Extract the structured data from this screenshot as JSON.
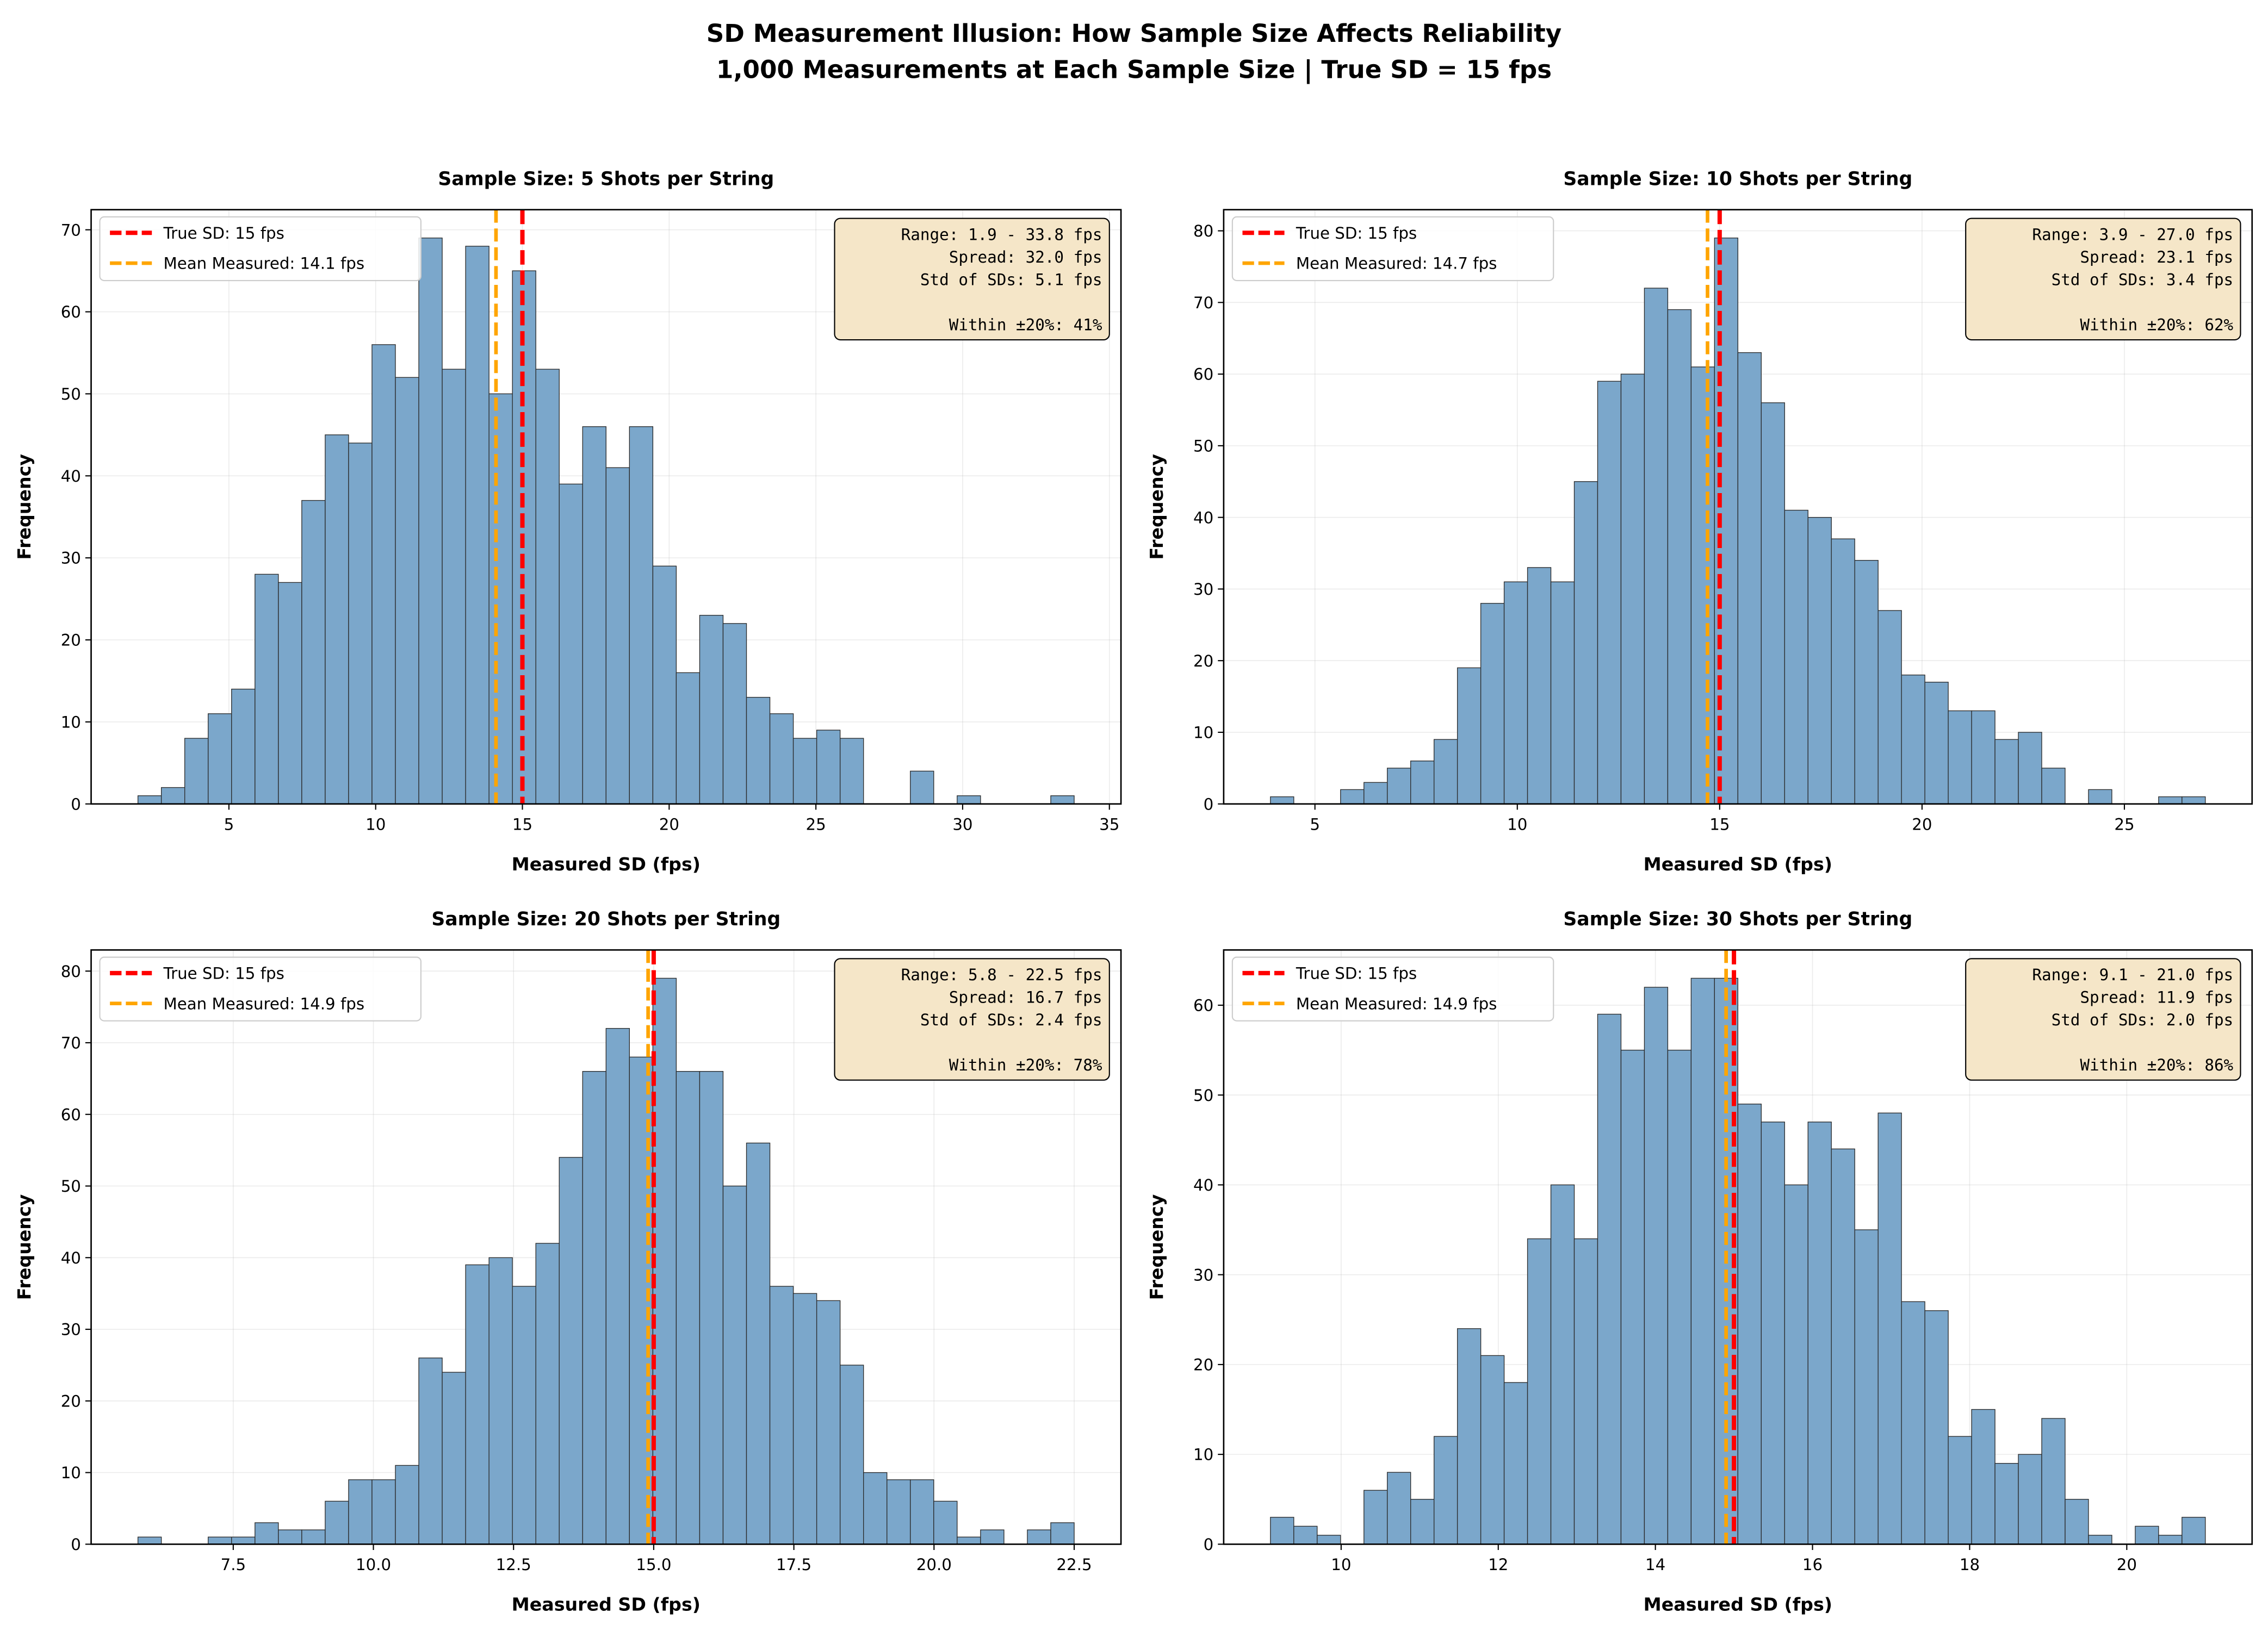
{
  "suptitle": {
    "line1": "SD Measurement Illusion: How Sample Size Affects Reliability",
    "line2": "1,000 Measurements at Each Sample Size | True SD = 15 fps"
  },
  "colors": {
    "bar": "#7BA7CB",
    "bar_edge": "#2b2b2b",
    "true_sd": "#FF0000",
    "mean": "#FFA500",
    "stats_box": "#F5E6C8"
  },
  "chart_data": [
    {
      "type": "bar",
      "title": "Sample Size: 5 Shots per String",
      "xlabel": "Measured SD (fps)",
      "ylabel": "Frequency",
      "bin_range": [
        1.9,
        33.8
      ],
      "bins": 40,
      "values": [
        1,
        2,
        8,
        11,
        14,
        28,
        27,
        37,
        45,
        44,
        56,
        52,
        69,
        53,
        68,
        50,
        65,
        53,
        39,
        46,
        41,
        46,
        29,
        16,
        23,
        22,
        13,
        11,
        8,
        9,
        8,
        0,
        0,
        4,
        0,
        1,
        0,
        0,
        0,
        1
      ],
      "xticks": [
        5,
        10,
        15,
        20,
        25,
        30,
        35
      ],
      "xtick_labels": [
        "5",
        "10",
        "15",
        "20",
        "25",
        "30",
        "35"
      ],
      "yticks": [
        0,
        10,
        20,
        30,
        40,
        50,
        60,
        70
      ],
      "true_sd": 15,
      "mean": 14.1,
      "legend": [
        "True SD: 15 fps",
        "Mean Measured: 14.1 fps"
      ],
      "legend_position": "top-left",
      "stats": [
        "Range: 1.9 - 33.8 fps",
        "Spread: 32.0 fps",
        "Std of SDs: 5.1 fps",
        "",
        "Within ±20%: 41%"
      ],
      "grid": true
    },
    {
      "type": "bar",
      "title": "Sample Size: 10 Shots per String",
      "xlabel": "Measured SD (fps)",
      "ylabel": "Frequency",
      "bin_range": [
        3.9,
        27.0
      ],
      "bins": 40,
      "values": [
        1,
        0,
        0,
        2,
        3,
        5,
        6,
        9,
        19,
        28,
        31,
        33,
        31,
        45,
        59,
        60,
        72,
        69,
        61,
        79,
        63,
        56,
        41,
        40,
        37,
        34,
        27,
        18,
        17,
        13,
        13,
        9,
        10,
        5,
        0,
        2,
        0,
        0,
        1,
        1
      ],
      "xticks": [
        5,
        10,
        15,
        20,
        25
      ],
      "xtick_labels": [
        "5",
        "10",
        "15",
        "20",
        "25"
      ],
      "yticks": [
        0,
        10,
        20,
        30,
        40,
        50,
        60,
        70,
        80
      ],
      "true_sd": 15,
      "mean": 14.7,
      "legend": [
        "True SD: 15 fps",
        "Mean Measured: 14.7 fps"
      ],
      "legend_position": "top-left",
      "stats": [
        "Range: 3.9 - 27.0 fps",
        "Spread: 23.1 fps",
        "Std of SDs: 3.4 fps",
        "",
        "Within ±20%: 62%"
      ],
      "grid": true
    },
    {
      "type": "bar",
      "title": "Sample Size: 20 Shots per String",
      "xlabel": "Measured SD (fps)",
      "ylabel": "Frequency",
      "bin_range": [
        5.8,
        22.5
      ],
      "bins": 40,
      "values": [
        1,
        0,
        0,
        1,
        1,
        3,
        2,
        2,
        6,
        9,
        9,
        11,
        26,
        24,
        39,
        40,
        36,
        42,
        54,
        66,
        72,
        68,
        79,
        66,
        66,
        50,
        56,
        36,
        35,
        34,
        25,
        10,
        9,
        9,
        6,
        1,
        2,
        0,
        2,
        3
      ],
      "xticks": [
        7.5,
        10,
        12.5,
        15,
        17.5,
        20,
        22.5
      ],
      "xtick_labels": [
        "7.5",
        "10.0",
        "12.5",
        "15.0",
        "17.5",
        "20.0",
        "22.5"
      ],
      "yticks": [
        0,
        10,
        20,
        30,
        40,
        50,
        60,
        70,
        80
      ],
      "true_sd": 15,
      "mean": 14.9,
      "legend": [
        "True SD: 15 fps",
        "Mean Measured: 14.9 fps"
      ],
      "legend_position": "top-left",
      "stats": [
        "Range: 5.8 - 22.5 fps",
        "Spread: 16.7 fps",
        "Std of SDs: 2.4 fps",
        "",
        "Within ±20%: 78%"
      ],
      "grid": true
    },
    {
      "type": "bar",
      "title": "Sample Size: 30 Shots per String",
      "xlabel": "Measured SD (fps)",
      "ylabel": "Frequency",
      "bin_range": [
        9.1,
        21.0
      ],
      "bins": 40,
      "values": [
        3,
        2,
        1,
        0,
        6,
        8,
        5,
        12,
        24,
        21,
        18,
        34,
        40,
        34,
        59,
        55,
        62,
        55,
        63,
        63,
        49,
        47,
        40,
        47,
        44,
        35,
        48,
        27,
        26,
        12,
        15,
        9,
        10,
        14,
        5,
        1,
        0,
        2,
        1,
        3
      ],
      "xticks": [
        10,
        12,
        14,
        16,
        18,
        20
      ],
      "xtick_labels": [
        "10",
        "12",
        "14",
        "16",
        "18",
        "20"
      ],
      "yticks": [
        0,
        10,
        20,
        30,
        40,
        50,
        60
      ],
      "true_sd": 15,
      "mean": 14.9,
      "legend": [
        "True SD: 15 fps",
        "Mean Measured: 14.9 fps"
      ],
      "legend_position": "top-left",
      "stats": [
        "Range: 9.1 - 21.0 fps",
        "Spread: 11.9 fps",
        "Std of SDs: 2.0 fps",
        "",
        "Within ±20%: 86%"
      ],
      "grid": true
    }
  ]
}
